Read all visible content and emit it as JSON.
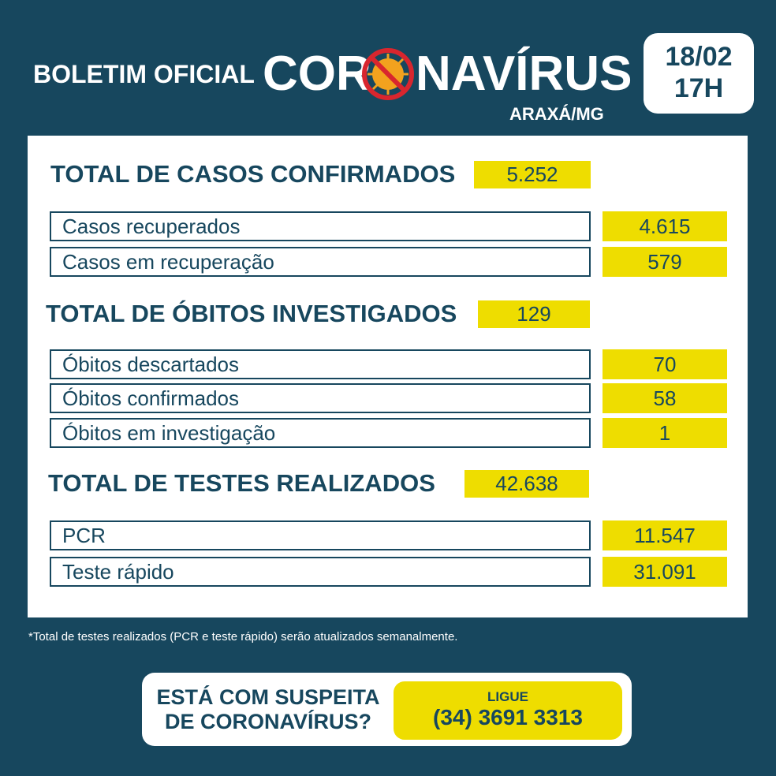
{
  "header": {
    "prefix": "BOLETIM OFICIAL",
    "title_start": "COR",
    "title_end": "NAVÍRUS",
    "location": "ARAXÁ/MG",
    "date": "18/02",
    "time": "17H"
  },
  "sections": [
    {
      "title": "TOTAL DE CASOS CONFIRMADOS",
      "total": "5.252",
      "rows": [
        {
          "label": "Casos recuperados",
          "value": "4.615"
        },
        {
          "label": "Casos em recuperação",
          "value": "579"
        }
      ]
    },
    {
      "title": "TOTAL DE ÓBITOS INVESTIGADOS",
      "total": "129",
      "rows": [
        {
          "label": "Óbitos descartados",
          "value": "70"
        },
        {
          "label": "Óbitos confirmados",
          "value": "58"
        },
        {
          "label": "Óbitos em investigação",
          "value": "1"
        }
      ]
    },
    {
      "title": "TOTAL DE TESTES REALIZADOS",
      "total": "42.638",
      "rows": [
        {
          "label": "PCR",
          "value": "11.547"
        },
        {
          "label": "Teste rápido",
          "value": "31.091"
        }
      ]
    }
  ],
  "footnote": "*Total de testes realizados (PCR e teste rápido) serão atualizados semanalmente.",
  "cta": {
    "question_lines": [
      "ESTÁ COM SUSPEITA",
      "DE CORONAVÍRUS?"
    ],
    "call": "LIGUE",
    "phone": "(34) 3691 3313"
  }
}
